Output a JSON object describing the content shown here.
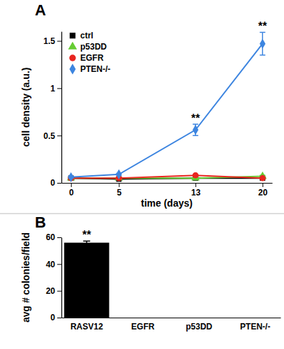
{
  "chart_data": [
    {
      "type": "line",
      "panel_label": "A",
      "xlabel": "time (days)",
      "ylabel": "cell density (a.u.)",
      "x": [
        0,
        5,
        13,
        20
      ],
      "xlim": [
        -1,
        21
      ],
      "xticks": [
        0,
        5,
        13,
        20
      ],
      "ylim": [
        0,
        1.6
      ],
      "yticks": [
        0,
        0.5,
        1,
        1.5
      ],
      "grid": false,
      "legend": "upper left",
      "series": [
        {
          "name": "ctrl",
          "color": "#000000",
          "marker": "square",
          "values": [
            0.05,
            0.04,
            0.05,
            0.05
          ],
          "errors": [
            0.01,
            0.01,
            0.01,
            0.01
          ]
        },
        {
          "name": "p53DD",
          "color": "#66cc33",
          "marker": "triangle",
          "values": [
            0.05,
            0.05,
            0.05,
            0.07
          ],
          "errors": [
            0.01,
            0.01,
            0.01,
            0.01
          ]
        },
        {
          "name": "EGFR",
          "color": "#e8251f",
          "marker": "circle",
          "values": [
            0.05,
            0.05,
            0.08,
            0.05
          ],
          "errors": [
            0.01,
            0.01,
            0.01,
            0.01
          ]
        },
        {
          "name": "PTEN-/-",
          "color": "#3d85e0",
          "marker": "diamond",
          "values": [
            0.06,
            0.09,
            0.56,
            1.47
          ],
          "errors": [
            0.01,
            0.01,
            0.06,
            0.12
          ]
        }
      ],
      "annotations": [
        {
          "x": 13,
          "text": "**"
        },
        {
          "x": 20,
          "text": "**"
        }
      ]
    },
    {
      "type": "bar",
      "panel_label": "B",
      "ylabel": "avg # colonies/field",
      "categories": [
        "RASV12",
        "EGFR",
        "p53DD",
        "PTEN-/-"
      ],
      "values": [
        56,
        0,
        0,
        0
      ],
      "errors": [
        1.2,
        0,
        0,
        0
      ],
      "color": "#000000",
      "ylim": [
        0,
        60
      ],
      "yticks": [
        0,
        20,
        40,
        60
      ],
      "grid": false,
      "annotations": [
        {
          "category": "RASV12",
          "text": "**"
        }
      ]
    }
  ]
}
